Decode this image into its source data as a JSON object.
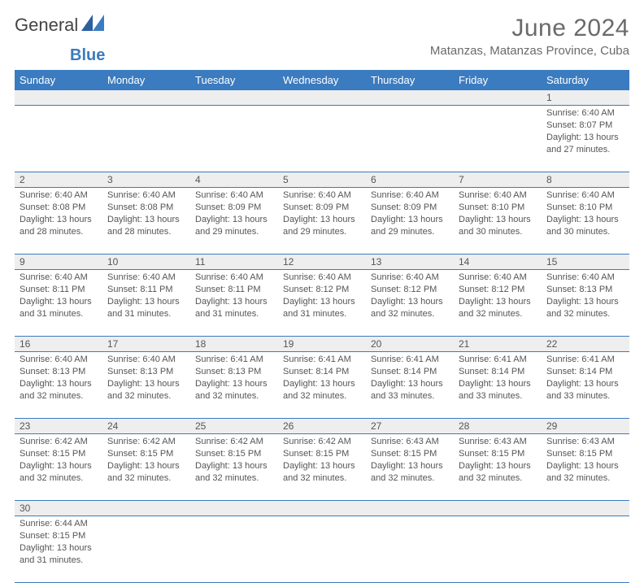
{
  "logo": {
    "text1": "General",
    "text2": "Blue"
  },
  "title": "June 2024",
  "location": "Matanzas, Matanzas Province, Cuba",
  "colors": {
    "header_bg": "#3b7bbf",
    "header_text": "#ffffff",
    "daynum_bg": "#eeeeee",
    "text": "#555555",
    "row_border": "#3b7bbf",
    "logo_accent": "#3b7bbf"
  },
  "weekdays": [
    "Sunday",
    "Monday",
    "Tuesday",
    "Wednesday",
    "Thursday",
    "Friday",
    "Saturday"
  ],
  "weeks": [
    [
      null,
      null,
      null,
      null,
      null,
      null,
      {
        "n": "1",
        "sr": "6:40 AM",
        "ss": "8:07 PM",
        "dl": "13 hours and 27 minutes."
      }
    ],
    [
      {
        "n": "2",
        "sr": "6:40 AM",
        "ss": "8:08 PM",
        "dl": "13 hours and 28 minutes."
      },
      {
        "n": "3",
        "sr": "6:40 AM",
        "ss": "8:08 PM",
        "dl": "13 hours and 28 minutes."
      },
      {
        "n": "4",
        "sr": "6:40 AM",
        "ss": "8:09 PM",
        "dl": "13 hours and 29 minutes."
      },
      {
        "n": "5",
        "sr": "6:40 AM",
        "ss": "8:09 PM",
        "dl": "13 hours and 29 minutes."
      },
      {
        "n": "6",
        "sr": "6:40 AM",
        "ss": "8:09 PM",
        "dl": "13 hours and 29 minutes."
      },
      {
        "n": "7",
        "sr": "6:40 AM",
        "ss": "8:10 PM",
        "dl": "13 hours and 30 minutes."
      },
      {
        "n": "8",
        "sr": "6:40 AM",
        "ss": "8:10 PM",
        "dl": "13 hours and 30 minutes."
      }
    ],
    [
      {
        "n": "9",
        "sr": "6:40 AM",
        "ss": "8:11 PM",
        "dl": "13 hours and 31 minutes."
      },
      {
        "n": "10",
        "sr": "6:40 AM",
        "ss": "8:11 PM",
        "dl": "13 hours and 31 minutes."
      },
      {
        "n": "11",
        "sr": "6:40 AM",
        "ss": "8:11 PM",
        "dl": "13 hours and 31 minutes."
      },
      {
        "n": "12",
        "sr": "6:40 AM",
        "ss": "8:12 PM",
        "dl": "13 hours and 31 minutes."
      },
      {
        "n": "13",
        "sr": "6:40 AM",
        "ss": "8:12 PM",
        "dl": "13 hours and 32 minutes."
      },
      {
        "n": "14",
        "sr": "6:40 AM",
        "ss": "8:12 PM",
        "dl": "13 hours and 32 minutes."
      },
      {
        "n": "15",
        "sr": "6:40 AM",
        "ss": "8:13 PM",
        "dl": "13 hours and 32 minutes."
      }
    ],
    [
      {
        "n": "16",
        "sr": "6:40 AM",
        "ss": "8:13 PM",
        "dl": "13 hours and 32 minutes."
      },
      {
        "n": "17",
        "sr": "6:40 AM",
        "ss": "8:13 PM",
        "dl": "13 hours and 32 minutes."
      },
      {
        "n": "18",
        "sr": "6:41 AM",
        "ss": "8:13 PM",
        "dl": "13 hours and 32 minutes."
      },
      {
        "n": "19",
        "sr": "6:41 AM",
        "ss": "8:14 PM",
        "dl": "13 hours and 32 minutes."
      },
      {
        "n": "20",
        "sr": "6:41 AM",
        "ss": "8:14 PM",
        "dl": "13 hours and 33 minutes."
      },
      {
        "n": "21",
        "sr": "6:41 AM",
        "ss": "8:14 PM",
        "dl": "13 hours and 33 minutes."
      },
      {
        "n": "22",
        "sr": "6:41 AM",
        "ss": "8:14 PM",
        "dl": "13 hours and 33 minutes."
      }
    ],
    [
      {
        "n": "23",
        "sr": "6:42 AM",
        "ss": "8:15 PM",
        "dl": "13 hours and 32 minutes."
      },
      {
        "n": "24",
        "sr": "6:42 AM",
        "ss": "8:15 PM",
        "dl": "13 hours and 32 minutes."
      },
      {
        "n": "25",
        "sr": "6:42 AM",
        "ss": "8:15 PM",
        "dl": "13 hours and 32 minutes."
      },
      {
        "n": "26",
        "sr": "6:42 AM",
        "ss": "8:15 PM",
        "dl": "13 hours and 32 minutes."
      },
      {
        "n": "27",
        "sr": "6:43 AM",
        "ss": "8:15 PM",
        "dl": "13 hours and 32 minutes."
      },
      {
        "n": "28",
        "sr": "6:43 AM",
        "ss": "8:15 PM",
        "dl": "13 hours and 32 minutes."
      },
      {
        "n": "29",
        "sr": "6:43 AM",
        "ss": "8:15 PM",
        "dl": "13 hours and 32 minutes."
      }
    ],
    [
      {
        "n": "30",
        "sr": "6:44 AM",
        "ss": "8:15 PM",
        "dl": "13 hours and 31 minutes."
      },
      null,
      null,
      null,
      null,
      null,
      null
    ]
  ],
  "labels": {
    "sunrise": "Sunrise: ",
    "sunset": "Sunset: ",
    "daylight": "Daylight: "
  }
}
